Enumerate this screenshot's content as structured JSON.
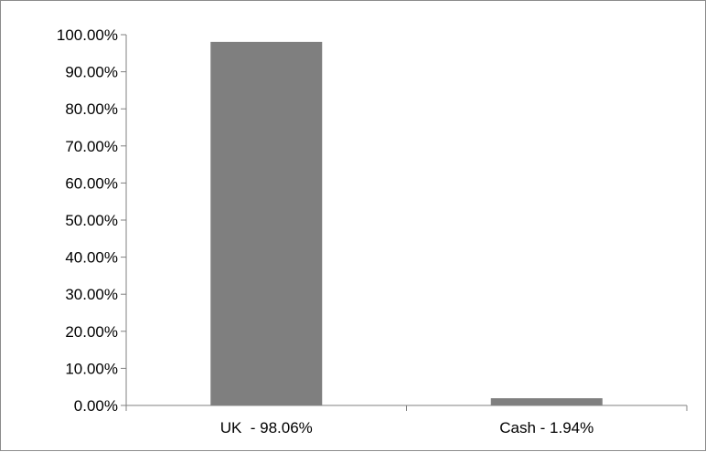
{
  "chart_data": {
    "type": "bar",
    "categories": [
      "UK  - 98.06%",
      "Cash - 1.94%"
    ],
    "values": [
      98.06,
      1.94
    ],
    "ylim": [
      0,
      100
    ],
    "y_ticks": [
      "0.00%",
      "10.00%",
      "20.00%",
      "30.00%",
      "40.00%",
      "50.00%",
      "60.00%",
      "70.00%",
      "80.00%",
      "90.00%",
      "100.00%"
    ],
    "y_tick_values": [
      0,
      10,
      20,
      30,
      40,
      50,
      60,
      70,
      80,
      90,
      100
    ],
    "title": "",
    "xlabel": "",
    "ylabel": "",
    "grid": false,
    "legend": "none"
  },
  "colors": {
    "bar": "#7f7f7f",
    "axis": "#808080",
    "frame": "#8c8c8c"
  }
}
